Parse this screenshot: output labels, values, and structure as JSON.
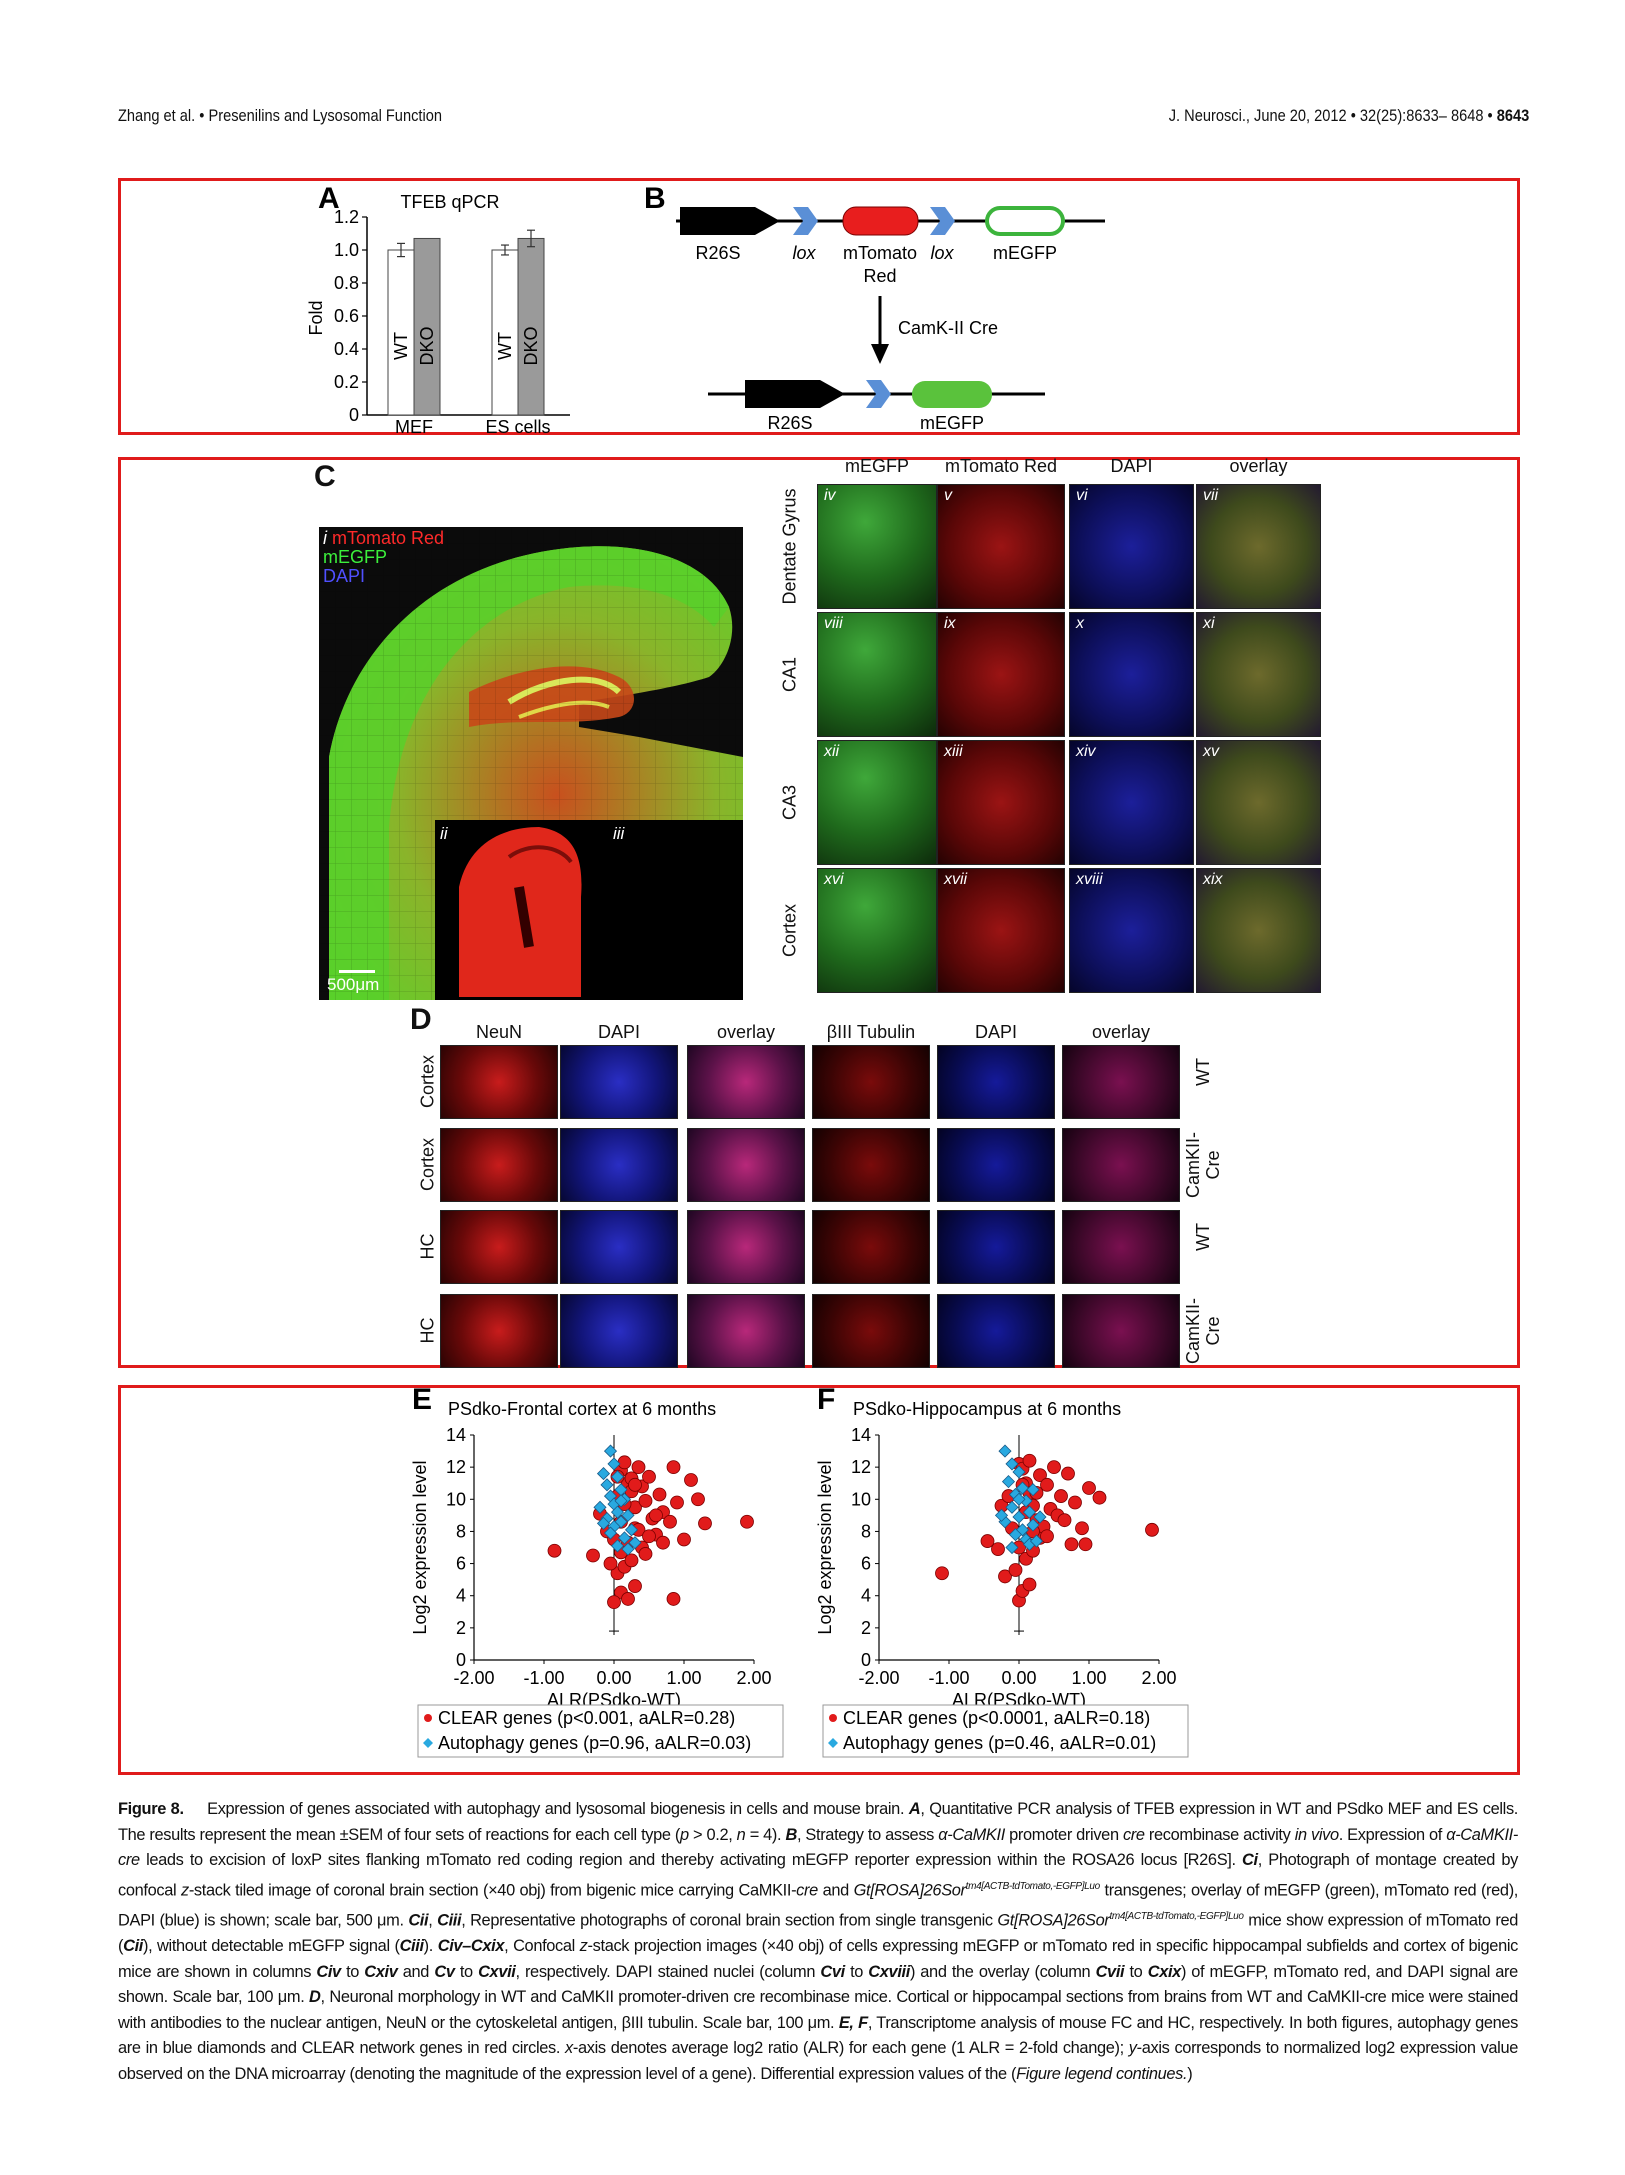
{
  "header": {
    "left": "Zhang et al. • Presenilins and Lysosomal Function",
    "right_journal": "J. Neurosci., June 20, 2012 • 32(25):8633– 8648 • ",
    "right_page": "8643"
  },
  "panel_a": {
    "label": "A",
    "chart_data": {
      "type": "bar",
      "title": "TFEB qPCR",
      "ylabel": "Fold",
      "ylim": [
        0,
        1.2
      ],
      "yticks": [
        "0",
        "0.2",
        "0.4",
        "0.6",
        "0.8",
        "1.0",
        "1.2"
      ],
      "categories": [
        "MEF",
        "ES cells"
      ],
      "series": [
        {
          "name": "WT",
          "values": [
            1.0,
            1.0
          ],
          "errors": [
            0.04,
            0.03
          ],
          "color": "#ffffff"
        },
        {
          "name": "DKO",
          "values": [
            1.07,
            1.07
          ],
          "errors": [
            0.0,
            0.05
          ],
          "color": "#9a9a9a"
        }
      ]
    }
  },
  "panel_b": {
    "label": "B",
    "r26s": "R26S",
    "lox1": "lox",
    "mtomato": "mTomato",
    "red": "Red",
    "lox2": "lox",
    "megfp": "mEGFP",
    "cre": "CamK-II Cre",
    "r26s2": "R26S",
    "megfp2": "mEGFP"
  },
  "panel_c": {
    "label": "C",
    "legend_i": "i",
    "legend_red": "mTomato Red",
    "legend_green": "mEGFP",
    "legend_blue": "DAPI",
    "inset_ii": "ii",
    "inset_iii": "iii",
    "scalebar": "500μm",
    "columns": [
      "mEGFP",
      "mTomato Red",
      "DAPI",
      "overlay"
    ],
    "rows": [
      "Dentate Gyrus",
      "CA1",
      "CA3",
      "Cortex"
    ],
    "tiles": [
      [
        "iv",
        "v",
        "vi",
        "vii"
      ],
      [
        "viii",
        "ix",
        "x",
        "xi"
      ],
      [
        "xii",
        "xiii",
        "xiv",
        "xv"
      ],
      [
        "xvi",
        "xvii",
        "xviii",
        "xix"
      ]
    ]
  },
  "panel_d": {
    "label": "D",
    "columns": [
      "NeuN",
      "DAPI",
      "overlay",
      "βIII Tubulin",
      "DAPI",
      "overlay"
    ],
    "rows_left": [
      "Cortex",
      "Cortex",
      "HC",
      "HC"
    ],
    "rows_right": [
      "WT",
      "CamKII-\nCre",
      "WT",
      "CamKII-\nCre"
    ]
  },
  "panel_e": {
    "label": "E",
    "chart_data": {
      "type": "scatter",
      "title": "PSdko-Frontal cortex at 6 months",
      "xlabel": "ALR(PSdko-WT)",
      "ylabel": "Log2 expression level",
      "xlim": [
        -2.0,
        2.0
      ],
      "ylim": [
        0,
        14
      ],
      "xticks": [
        "-2.00",
        "-1.00",
        "0.00",
        "1.00",
        "2.00"
      ],
      "yticks": [
        "0",
        "2",
        "4",
        "6",
        "8",
        "10",
        "12",
        "14"
      ],
      "series": [
        {
          "name": "CLEAR genes (p<0.001, aALR=0.28)",
          "marker": "circle",
          "color": "#e11b1b",
          "points": [
            [
              -0.85,
              6.8
            ],
            [
              -0.3,
              6.5
            ],
            [
              -0.2,
              9.1
            ],
            [
              -0.1,
              8.0
            ],
            [
              0.0,
              7.5
            ],
            [
              0.05,
              10.2
            ],
            [
              0.1,
              11.8
            ],
            [
              0.15,
              12.3
            ],
            [
              0.2,
              11.0
            ],
            [
              0.25,
              10.5
            ],
            [
              0.3,
              9.5
            ],
            [
              0.3,
              8.2
            ],
            [
              0.35,
              12.0
            ],
            [
              0.4,
              10.8
            ],
            [
              0.45,
              9.9
            ],
            [
              0.5,
              11.4
            ],
            [
              0.55,
              8.8
            ],
            [
              0.6,
              7.8
            ],
            [
              0.65,
              10.3
            ],
            [
              0.7,
              9.2
            ],
            [
              0.8,
              8.6
            ],
            [
              0.85,
              12.0
            ],
            [
              0.9,
              9.8
            ],
            [
              1.1,
              11.2
            ],
            [
              1.2,
              10.0
            ],
            [
              1.3,
              8.5
            ],
            [
              1.9,
              8.6
            ],
            [
              0.05,
              5.4
            ],
            [
              0.1,
              4.2
            ],
            [
              0.0,
              3.6
            ],
            [
              0.2,
              3.8
            ],
            [
              0.3,
              4.6
            ],
            [
              0.15,
              5.8
            ],
            [
              0.25,
              6.2
            ],
            [
              0.4,
              7.0
            ],
            [
              -0.05,
              6.0
            ],
            [
              0.1,
              8.6
            ],
            [
              0.2,
              7.3
            ],
            [
              0.35,
              8.1
            ],
            [
              0.45,
              6.6
            ],
            [
              0.5,
              7.7
            ],
            [
              0.6,
              9.0
            ],
            [
              0.7,
              7.3
            ],
            [
              0.85,
              3.8
            ],
            [
              1.0,
              7.5
            ],
            [
              0.15,
              9.7
            ],
            [
              0.25,
              11.3
            ],
            [
              0.05,
              11.4
            ],
            [
              0.3,
              10.9
            ],
            [
              0.1,
              6.7
            ]
          ]
        },
        {
          "name": "Autophagy genes (p=0.96, aALR=0.03)",
          "marker": "diamond",
          "color": "#29a9e0",
          "points": [
            [
              -0.05,
              13.0
            ],
            [
              0.0,
              12.2
            ],
            [
              -0.15,
              11.6
            ],
            [
              0.05,
              11.4
            ],
            [
              -0.1,
              10.9
            ],
            [
              0.1,
              10.6
            ],
            [
              -0.05,
              10.2
            ],
            [
              0.15,
              10.0
            ],
            [
              0.0,
              9.7
            ],
            [
              -0.2,
              9.5
            ],
            [
              0.05,
              9.2
            ],
            [
              0.2,
              9.0
            ],
            [
              -0.1,
              8.8
            ],
            [
              0.1,
              8.6
            ],
            [
              0.0,
              8.3
            ],
            [
              0.25,
              8.1
            ],
            [
              -0.05,
              7.9
            ],
            [
              0.15,
              7.6
            ],
            [
              0.3,
              7.3
            ],
            [
              0.05,
              7.1
            ],
            [
              0.2,
              6.9
            ],
            [
              -0.15,
              8.5
            ],
            [
              0.1,
              9.9
            ]
          ]
        }
      ]
    }
  },
  "panel_f": {
    "label": "F",
    "chart_data": {
      "type": "scatter",
      "title": "PSdko-Hippocampus at 6 months",
      "xlabel": "ALR(PSdko-WT)",
      "ylabel": "Log2 expression level",
      "xlim": [
        -2.0,
        2.0
      ],
      "ylim": [
        0,
        14
      ],
      "xticks": [
        "-2.00",
        "-1.00",
        "0.00",
        "1.00",
        "2.00"
      ],
      "yticks": [
        "0",
        "2",
        "4",
        "6",
        "8",
        "10",
        "12",
        "14"
      ],
      "series": [
        {
          "name": "CLEAR genes (p<0.0001, aALR=0.18)",
          "marker": "circle",
          "color": "#e11b1b",
          "points": [
            [
              -1.1,
              5.4
            ],
            [
              -0.45,
              7.4
            ],
            [
              -0.3,
              6.9
            ],
            [
              -0.2,
              5.2
            ],
            [
              -0.25,
              9.6
            ],
            [
              -0.1,
              8.2
            ],
            [
              0.0,
              12.2
            ],
            [
              0.05,
              11.9
            ],
            [
              0.1,
              11.0
            ],
            [
              0.15,
              10.4
            ],
            [
              0.2,
              9.6
            ],
            [
              0.25,
              8.7
            ],
            [
              0.3,
              11.5
            ],
            [
              0.4,
              10.9
            ],
            [
              0.45,
              9.4
            ],
            [
              0.5,
              12.0
            ],
            [
              0.6,
              10.2
            ],
            [
              0.7,
              11.6
            ],
            [
              0.8,
              9.8
            ],
            [
              0.9,
              8.2
            ],
            [
              1.0,
              10.7
            ],
            [
              1.15,
              10.1
            ],
            [
              0.75,
              7.2
            ],
            [
              0.95,
              7.2
            ],
            [
              1.9,
              8.1
            ],
            [
              0.0,
              3.7
            ],
            [
              0.05,
              4.3
            ],
            [
              -0.05,
              5.6
            ],
            [
              0.1,
              6.3
            ],
            [
              0.15,
              4.7
            ],
            [
              0.2,
              6.8
            ],
            [
              0.3,
              7.6
            ],
            [
              0.35,
              8.3
            ],
            [
              0.0,
              7.0
            ],
            [
              0.1,
              9.2
            ],
            [
              0.2,
              8.0
            ],
            [
              0.4,
              7.7
            ],
            [
              0.55,
              9.0
            ],
            [
              0.65,
              8.7
            ],
            [
              0.25,
              10.4
            ],
            [
              -0.15,
              10.2
            ],
            [
              0.05,
              10.9
            ],
            [
              0.15,
              12.4
            ]
          ]
        },
        {
          "name": "Autophagy genes (p=0.46, aALR=0.01)",
          "marker": "diamond",
          "color": "#29a9e0",
          "points": [
            [
              -0.2,
              13.0
            ],
            [
              -0.1,
              12.2
            ],
            [
              0.0,
              11.7
            ],
            [
              -0.15,
              11.1
            ],
            [
              0.05,
              10.7
            ],
            [
              -0.05,
              10.3
            ],
            [
              0.1,
              9.9
            ],
            [
              -0.1,
              9.5
            ],
            [
              0.15,
              9.2
            ],
            [
              0.0,
              8.9
            ],
            [
              -0.2,
              8.6
            ],
            [
              0.2,
              8.4
            ],
            [
              0.05,
              8.1
            ],
            [
              -0.05,
              7.8
            ],
            [
              0.1,
              7.5
            ],
            [
              0.15,
              7.2
            ],
            [
              -0.1,
              7.0
            ],
            [
              0.25,
              7.4
            ],
            [
              0.0,
              10.0
            ],
            [
              0.2,
              10.6
            ],
            [
              -0.25,
              9.0
            ],
            [
              0.3,
              8.9
            ]
          ]
        }
      ]
    }
  },
  "caption": {
    "fig": "Figure 8.",
    "p1": "Expression of genes associated with autophagy and lysosomal biogenesis in cells and mouse brain. ",
    "a": "A",
    "p2": ", Quantitative PCR analysis of TFEB expression in WT and PSdko MEF and ES cells. The results represent the mean ±SEM of four sets of reactions for each cell type (",
    "p3": "p",
    "p4": " > 0.2, ",
    "p5": "n",
    "p6": " = 4). ",
    "b": "B",
    "p7": ", Strategy to assess ",
    "p8": "α-CaMKII",
    "p9": " promoter driven ",
    "p10": "cre",
    "p11": " recombinase activity ",
    "p12": "in vivo",
    "p13": ". Expression of ",
    "p14": "α-CaMKII-cre",
    "p15": " leads to excision of loxP sites flanking mTomato red coding region and thereby activating mEGFP reporter expression within the ROSA26 locus [R26S]. ",
    "ci": "Ci",
    "p16": ", Photograph of montage created by confocal ",
    "p17": "z",
    "p18": "-stack tiled image of coronal brain section (×40 obj) from bigenic mice carrying CaMKII-",
    "p19": "cre",
    "p20": " and ",
    "p21": "Gt[ROSA]26Sor",
    "p22": "tm4[ACTB-tdTomato,-EGFP]Luo",
    "p23": " transgenes; overlay of mEGFP (green), mTomato red (red), DAPI (blue) is shown; scale bar, 500 μm. ",
    "cii": "Cii",
    "p24": ", ",
    "ciii": "Ciii",
    "p25": ", Representative photographs of coronal brain section from single transgenic ",
    "p26": "Gt[ROSA]26Sor",
    "p27": "tm4[ACTB-tdTomato,-EGFP]Luo",
    "p28": " mice show expression of mTomato red (",
    "cii2": "Cii",
    "p29": "), without detectable mEGFP signal (",
    "ciii2": "Ciii",
    "p30": "). ",
    "civcxix": "Civ–Cxix",
    "p31": ", Confocal ",
    "p32": "z",
    "p33": "-stack projection images (×40 obj) of cells expressing mEGFP or mTomato red in specific hippocampal subfields and cortex of bigenic mice are shown in columns ",
    "civ": "Civ",
    "p34": " to ",
    "cxiv": "Cxiv",
    "p35": " and ",
    "cv": "Cv",
    "p36": " to ",
    "cxvii": "Cxvii",
    "p37": ", respectively. DAPI stained nuclei (column ",
    "cvi": "Cvi",
    "p38": " to ",
    "cxviii": "Cxviii",
    "p39": ") and the overlay (column ",
    "cvii": "Cvii",
    "p40": " to ",
    "cxix": "Cxix",
    "p41": ") of mEGFP, mTomato red, and DAPI signal are shown. Scale bar, 100 μm. ",
    "d": "D",
    "p42": ", Neuronal morphology in WT and CaMKII promoter-driven cre recombinase mice. Cortical or hippocampal sections from brains from WT and CaMKII-cre mice were stained with antibodies to the nuclear antigen, NeuN or the cytoskeletal antigen, βIII tubulin. Scale bar, 100 μm. ",
    "ef": "E, F",
    "p43": ", Transcriptome analysis of mouse FC and HC, respectively. In both figures, autophagy genes are in blue diamonds and CLEAR network genes in red circles. ",
    "p44": "x",
    "p45": "-axis denotes average log2 ratio (ALR) for each gene (1 ALR = 2-fold change); ",
    "p46": "y",
    "p47": "-axis corresponds to normalized log2 expression value observed on the DNA microarray (denoting the magnitude of the expression level of a gene). Differential expression values of the (",
    "p48": "Figure legend continues.",
    "p49": ")"
  }
}
